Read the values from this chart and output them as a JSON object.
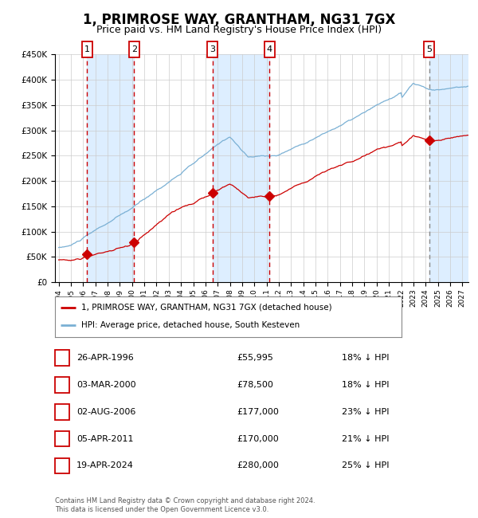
{
  "title": "1, PRIMROSE WAY, GRANTHAM, NG31 7GX",
  "subtitle": "Price paid vs. HM Land Registry's House Price Index (HPI)",
  "title_fontsize": 12,
  "subtitle_fontsize": 9,
  "ylim": [
    0,
    450000
  ],
  "yticks": [
    0,
    50000,
    100000,
    150000,
    200000,
    250000,
    300000,
    350000,
    400000,
    450000
  ],
  "ytick_labels": [
    "£0",
    "£50K",
    "£100K",
    "£150K",
    "£200K",
    "£250K",
    "£300K",
    "£350K",
    "£400K",
    "£450K"
  ],
  "xlim_start": 1993.7,
  "xlim_end": 2027.5,
  "transactions": [
    {
      "num": 1,
      "date": "26-APR-1996",
      "year": 1996.32,
      "price": 55995,
      "pct": "18%"
    },
    {
      "num": 2,
      "date": "03-MAR-2000",
      "year": 2000.17,
      "price": 78500,
      "pct": "18%"
    },
    {
      "num": 3,
      "date": "02-AUG-2006",
      "year": 2006.58,
      "price": 177000,
      "pct": "23%"
    },
    {
      "num": 4,
      "date": "05-APR-2011",
      "year": 2011.25,
      "price": 170000,
      "pct": "21%"
    },
    {
      "num": 5,
      "date": "19-APR-2024",
      "year": 2024.3,
      "price": 280000,
      "pct": "25%"
    }
  ],
  "sale_color": "#cc0000",
  "hpi_color": "#7ab0d4",
  "grid_color": "#cccccc",
  "bg_shaded_color": "#ddeeff",
  "legend_label_sale": "1, PRIMROSE WAY, GRANTHAM, NG31 7GX (detached house)",
  "legend_label_hpi": "HPI: Average price, detached house, South Kesteven",
  "footer_line1": "Contains HM Land Registry data © Crown copyright and database right 2024.",
  "footer_line2": "This data is licensed under the Open Government Licence v3.0.",
  "table_rows": [
    {
      "num": 1,
      "date": "26-APR-1996",
      "price": "£55,995",
      "desc": "18% ↓ HPI"
    },
    {
      "num": 2,
      "date": "03-MAR-2000",
      "price": "£78,500",
      "desc": "18% ↓ HPI"
    },
    {
      "num": 3,
      "date": "02-AUG-2006",
      "price": "£177,000",
      "desc": "23% ↓ HPI"
    },
    {
      "num": 4,
      "date": "05-APR-2011",
      "price": "£170,000",
      "desc": "21% ↓ HPI"
    },
    {
      "num": 5,
      "date": "19-APR-2024",
      "price": "£280,000",
      "desc": "25% ↓ HPI"
    }
  ]
}
